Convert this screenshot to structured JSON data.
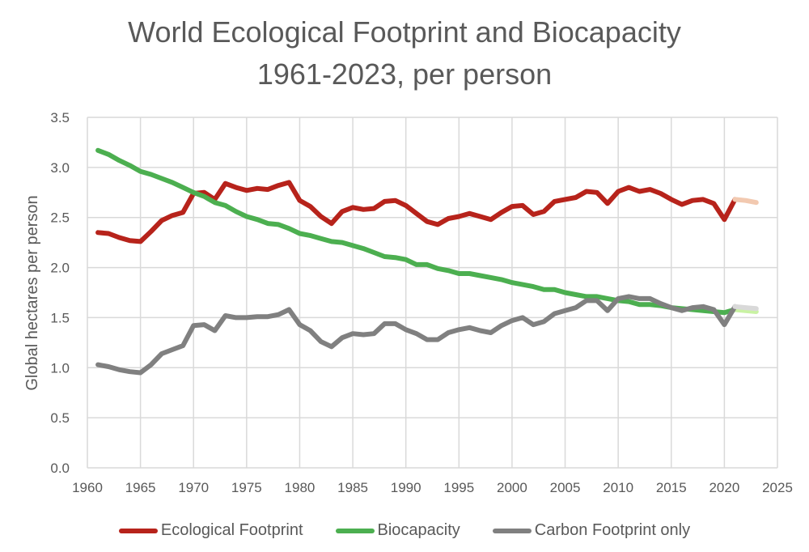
{
  "chart_data": {
    "type": "line",
    "title": "World Ecological Footprint and Biocapacity",
    "subtitle": "1961-2023, per person",
    "xlabel": "",
    "ylabel": "Global hectares  per person",
    "xlim": [
      1960,
      2025
    ],
    "ylim": [
      0,
      3.5
    ],
    "x_ticks": [
      "1960",
      "1965",
      "1970",
      "1975",
      "1980",
      "1985",
      "1990",
      "1995",
      "2000",
      "2005",
      "2010",
      "2015",
      "2020",
      "2025"
    ],
    "y_ticks": [
      "0.0",
      "0.5",
      "1.0",
      "1.5",
      "2.0",
      "2.5",
      "3.0",
      "3.5"
    ],
    "grid": true,
    "legend_position": "bottom",
    "x_start": 1961,
    "projection_start": 2021,
    "series": [
      {
        "name": "Ecological Footprint",
        "color": "#B7231B",
        "projection_color": "#F2C9B0",
        "values": [
          2.35,
          2.34,
          2.3,
          2.27,
          2.26,
          2.36,
          2.47,
          2.52,
          2.55,
          2.74,
          2.75,
          2.68,
          2.84,
          2.8,
          2.77,
          2.79,
          2.78,
          2.82,
          2.85,
          2.67,
          2.61,
          2.51,
          2.44,
          2.56,
          2.6,
          2.58,
          2.59,
          2.66,
          2.67,
          2.62,
          2.54,
          2.46,
          2.43,
          2.49,
          2.51,
          2.54,
          2.51,
          2.48,
          2.55,
          2.61,
          2.62,
          2.53,
          2.56,
          2.66,
          2.68,
          2.7,
          2.76,
          2.75,
          2.64,
          2.76,
          2.8,
          2.76,
          2.78,
          2.74,
          2.68,
          2.63,
          2.67,
          2.68,
          2.64,
          2.48,
          2.68
        ],
        "projection": [
          2.68,
          2.67,
          2.65
        ]
      },
      {
        "name": "Biocapacity",
        "color": "#4CAF50",
        "projection_color": "#C9F2A3",
        "values": [
          3.17,
          3.13,
          3.07,
          3.02,
          2.96,
          2.93,
          2.89,
          2.85,
          2.8,
          2.75,
          2.71,
          2.65,
          2.62,
          2.56,
          2.51,
          2.48,
          2.44,
          2.43,
          2.39,
          2.34,
          2.32,
          2.29,
          2.26,
          2.25,
          2.22,
          2.19,
          2.15,
          2.11,
          2.1,
          2.08,
          2.03,
          2.03,
          1.99,
          1.97,
          1.94,
          1.94,
          1.92,
          1.9,
          1.88,
          1.85,
          1.83,
          1.81,
          1.78,
          1.78,
          1.75,
          1.73,
          1.71,
          1.71,
          1.69,
          1.67,
          1.66,
          1.63,
          1.63,
          1.62,
          1.6,
          1.59,
          1.58,
          1.57,
          1.56,
          1.55,
          1.58
        ],
        "projection": [
          1.58,
          1.57,
          1.56
        ]
      },
      {
        "name": "Carbon Footprint only",
        "color": "#808080",
        "projection_color": "#D9D9D9",
        "values": [
          1.03,
          1.01,
          0.98,
          0.96,
          0.95,
          1.03,
          1.14,
          1.18,
          1.22,
          1.42,
          1.43,
          1.37,
          1.52,
          1.5,
          1.5,
          1.51,
          1.51,
          1.53,
          1.58,
          1.43,
          1.37,
          1.26,
          1.21,
          1.3,
          1.34,
          1.33,
          1.34,
          1.44,
          1.44,
          1.38,
          1.34,
          1.28,
          1.28,
          1.35,
          1.38,
          1.4,
          1.37,
          1.35,
          1.42,
          1.47,
          1.5,
          1.43,
          1.46,
          1.54,
          1.57,
          1.6,
          1.67,
          1.67,
          1.57,
          1.69,
          1.71,
          1.69,
          1.69,
          1.64,
          1.6,
          1.57,
          1.6,
          1.61,
          1.58,
          1.43,
          1.61
        ],
        "projection": [
          1.61,
          1.6,
          1.59
        ]
      }
    ]
  }
}
